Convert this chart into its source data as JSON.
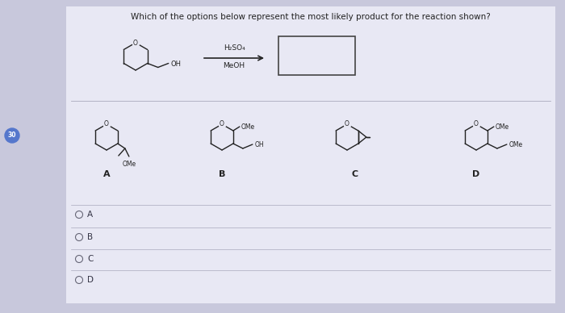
{
  "title": "Which of the options below represent the most likely product for the reaction shown?",
  "title_fontsize": 7.5,
  "bg_color": "#c8c8dc",
  "card_color": "#e8e8f4",
  "text_color": "#222222",
  "radio_options": [
    "A",
    "B",
    "C",
    "D"
  ],
  "reagents_line1": "H₂SO₄",
  "reagents_line2": "MeOH",
  "option_labels": [
    "A",
    "B",
    "C",
    "D"
  ]
}
